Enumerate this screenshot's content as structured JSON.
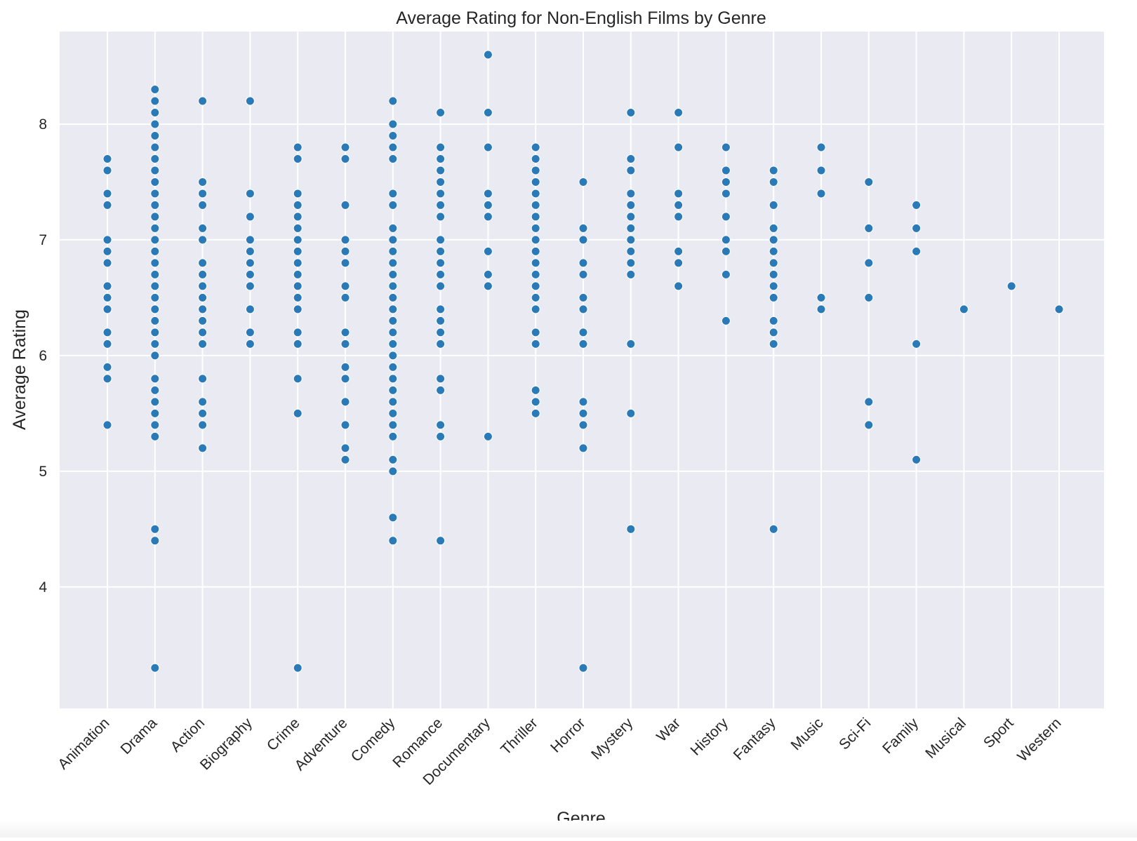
{
  "chart_data": {
    "type": "scatter",
    "title": "Average Rating for Non-English Films by Genre",
    "xlabel": "Genre",
    "ylabel": "Average Rating",
    "ylim": [
      2.95,
      8.8
    ],
    "yticks": [
      4,
      5,
      6,
      7,
      8
    ],
    "grid": true,
    "background_color": "#eaeaf2",
    "grid_color": "#ffffff",
    "marker_color": "#2a7ab8",
    "categories": [
      "Animation",
      "Drama",
      "Action",
      "Biography",
      "Crime",
      "Adventure",
      "Comedy",
      "Romance",
      "Documentary",
      "Thriller",
      "Horror",
      "Mystery",
      "War",
      "History",
      "Fantasy",
      "Music",
      "Sci-Fi",
      "Family",
      "Musical",
      "Sport",
      "Western"
    ],
    "series": [
      {
        "values": [
          [
            7.7,
            7.6,
            7.4,
            7.3,
            7.0,
            6.9,
            6.8,
            6.6,
            6.5,
            6.4,
            6.2,
            6.1,
            5.9,
            5.8,
            5.4
          ],
          [
            8.3,
            8.2,
            8.1,
            8.0,
            7.9,
            7.8,
            7.7,
            7.6,
            7.5,
            7.4,
            7.3,
            7.2,
            7.1,
            7.0,
            6.9,
            6.8,
            6.7,
            6.6,
            6.5,
            6.4,
            6.3,
            6.2,
            6.1,
            6.0,
            5.8,
            5.7,
            5.6,
            5.5,
            5.4,
            5.3,
            4.5,
            4.4,
            3.3
          ],
          [
            8.2,
            7.5,
            7.4,
            7.3,
            7.1,
            7.0,
            6.8,
            6.7,
            6.6,
            6.5,
            6.4,
            6.3,
            6.2,
            6.1,
            5.8,
            5.6,
            5.5,
            5.4,
            5.2
          ],
          [
            8.2,
            7.4,
            7.2,
            7.0,
            6.9,
            6.8,
            6.7,
            6.6,
            6.4,
            6.2,
            6.1
          ],
          [
            7.8,
            7.7,
            7.4,
            7.3,
            7.2,
            7.1,
            7.0,
            6.9,
            6.8,
            6.7,
            6.6,
            6.5,
            6.4,
            6.2,
            6.1,
            5.8,
            5.5,
            3.3
          ],
          [
            7.8,
            7.7,
            7.3,
            7.0,
            6.9,
            6.8,
            6.6,
            6.5,
            6.2,
            6.1,
            5.9,
            5.8,
            5.6,
            5.4,
            5.2,
            5.1
          ],
          [
            8.2,
            8.0,
            7.9,
            7.8,
            7.7,
            7.4,
            7.3,
            7.1,
            7.0,
            6.9,
            6.8,
            6.7,
            6.6,
            6.5,
            6.4,
            6.3,
            6.2,
            6.1,
            6.0,
            5.9,
            5.8,
            5.7,
            5.6,
            5.5,
            5.4,
            5.3,
            5.1,
            5.0,
            4.6,
            4.4
          ],
          [
            8.1,
            7.8,
            7.7,
            7.6,
            7.5,
            7.4,
            7.3,
            7.2,
            7.0,
            6.9,
            6.8,
            6.7,
            6.6,
            6.4,
            6.3,
            6.2,
            6.1,
            5.8,
            5.7,
            5.4,
            5.3,
            4.4
          ],
          [
            8.6,
            8.1,
            7.8,
            7.4,
            7.3,
            7.2,
            6.9,
            6.7,
            6.6,
            5.3
          ],
          [
            7.8,
            7.7,
            7.6,
            7.5,
            7.4,
            7.3,
            7.2,
            7.1,
            7.0,
            6.9,
            6.8,
            6.7,
            6.6,
            6.5,
            6.4,
            6.2,
            6.1,
            5.7,
            5.6,
            5.5
          ],
          [
            7.5,
            7.1,
            7.0,
            6.8,
            6.7,
            6.5,
            6.4,
            6.2,
            6.1,
            5.6,
            5.5,
            5.4,
            5.2,
            3.3
          ],
          [
            8.1,
            7.7,
            7.6,
            7.4,
            7.3,
            7.2,
            7.1,
            7.0,
            6.9,
            6.8,
            6.7,
            6.1,
            5.5,
            4.5
          ],
          [
            8.1,
            7.8,
            7.4,
            7.3,
            7.2,
            6.9,
            6.8,
            6.6
          ],
          [
            7.8,
            7.6,
            7.5,
            7.4,
            7.2,
            7.0,
            6.9,
            6.7,
            6.3
          ],
          [
            7.6,
            7.5,
            7.3,
            7.1,
            7.0,
            6.9,
            6.8,
            6.7,
            6.6,
            6.5,
            6.3,
            6.2,
            6.1,
            4.5
          ],
          [
            7.8,
            7.6,
            7.4,
            6.5,
            6.4
          ],
          [
            7.5,
            7.1,
            6.8,
            6.5,
            5.6,
            5.4
          ],
          [
            7.3,
            7.1,
            6.9,
            6.1,
            5.1
          ],
          [
            6.4
          ],
          [
            6.6
          ],
          [
            6.4
          ]
        ]
      }
    ]
  }
}
